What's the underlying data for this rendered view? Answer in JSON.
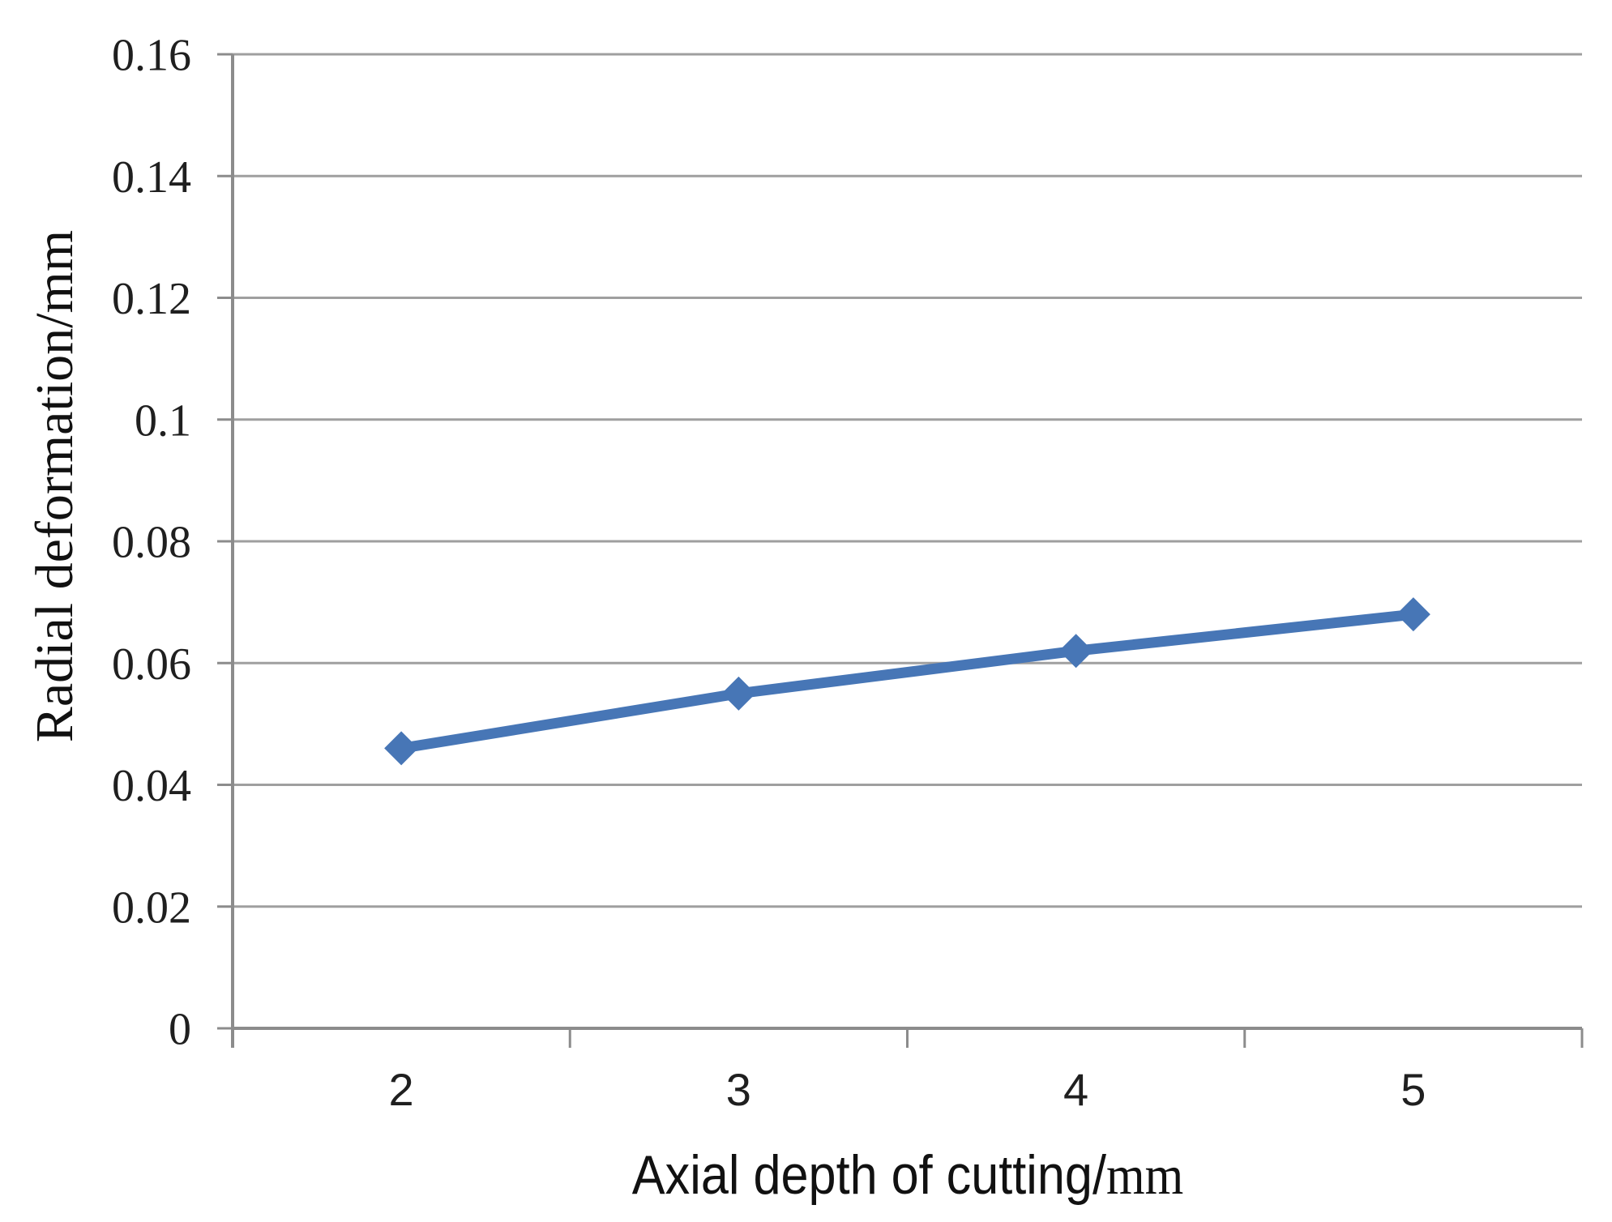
{
  "chart_data": {
    "type": "line",
    "x": [
      2,
      3,
      4,
      5
    ],
    "y": [
      0.046,
      0.055,
      0.062,
      0.068
    ],
    "title": "",
    "xlabel": "Axial depth of cutting/mm",
    "xlabel_parts": {
      "main": "Axial depth of cutting/",
      "unit": "mm"
    },
    "ylabel": "Radial deformation/mm",
    "ylim": [
      0,
      0.16
    ],
    "ytick_step": 0.02,
    "ytick_labels": [
      "0",
      "0.02",
      "0.04",
      "0.06",
      "0.08",
      "0.1",
      "0.12",
      "0.14",
      "0.16"
    ],
    "xtick_labels": [
      "2",
      "3",
      "4",
      "5"
    ],
    "grid": "horizontal",
    "legend": "none",
    "marker": "diamond",
    "colors": {
      "line": "#4776b6",
      "marker": "#4776b6",
      "gridline": "#9f9f9f",
      "axis": "#8c8c8c",
      "tick_text": "#1f1f1f",
      "title_text": "#111111",
      "background": "#ffffff"
    }
  }
}
